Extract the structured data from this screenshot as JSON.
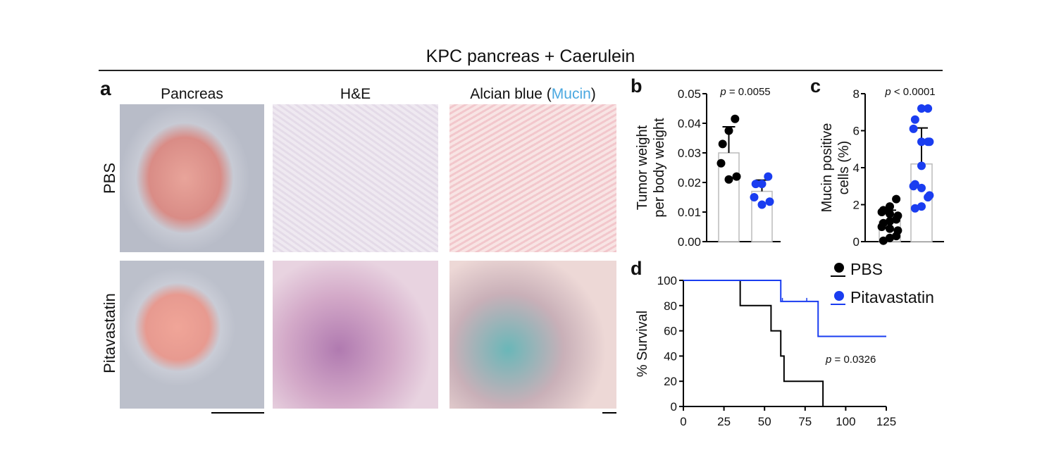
{
  "figure_title": "KPC pancreas + Caerulein",
  "panel_a": {
    "label": "a",
    "columns": [
      "Pancreas",
      "H&E",
      "Alcian blue ("
    ],
    "alcian_mucin": "Mucin",
    "alcian_close": ")",
    "rows": [
      "PBS",
      "Pitavastatin"
    ],
    "mucin_color": "#4aa8e0"
  },
  "colors": {
    "PBS": "#000000",
    "Pitavastatin": "#1a3df0"
  },
  "chart_data": [
    {
      "panel": "b",
      "type": "bar",
      "ylabel": [
        "Tumor weight",
        "per body weight"
      ],
      "ylim": [
        0,
        0.05
      ],
      "yticks": [
        "0.00",
        "0.01",
        "0.02",
        "0.03",
        "0.04",
        "0.05"
      ],
      "annotation": "= 0.0055",
      "p": "p",
      "series": [
        {
          "group": "PBS",
          "mean": 0.03,
          "sd": 0.0088,
          "points": [
            0.0415,
            0.0375,
            0.033,
            0.0265,
            0.021,
            0.022
          ]
        },
        {
          "group": "Pitavastatin",
          "mean": 0.017,
          "sd": 0.0038,
          "points": [
            0.022,
            0.0195,
            0.0195,
            0.015,
            0.0125,
            0.0135
          ]
        }
      ]
    },
    {
      "panel": "c",
      "type": "bar",
      "ylabel": [
        "Mucin positive",
        "cells (%)"
      ],
      "ylim": [
        0,
        8
      ],
      "yticks": [
        "0",
        "2",
        "4",
        "6",
        "8"
      ],
      "annotation": "< 0.0001",
      "p": "p",
      "series": [
        {
          "group": "PBS",
          "mean": 1.1,
          "sd": 0.6,
          "points": [
            2.3,
            1.9,
            1.7,
            1.6,
            1.5,
            1.4,
            1.2,
            1.1,
            1.0,
            0.8,
            0.7,
            0.6,
            0.3,
            0.2,
            0.05
          ]
        },
        {
          "group": "Pitavastatin",
          "mean": 4.2,
          "sd": 1.95,
          "points": [
            7.2,
            7.2,
            6.6,
            6.1,
            5.4,
            5.4,
            5.4,
            4.1,
            3.1,
            3.0,
            2.9,
            2.5,
            2.4,
            1.9,
            1.8
          ]
        }
      ]
    },
    {
      "panel": "d",
      "type": "line",
      "ylabel": "% Survival",
      "xlim": [
        0,
        125
      ],
      "ylim": [
        0,
        100
      ],
      "xticks": [
        "0",
        "25",
        "50",
        "75",
        "100",
        "125"
      ],
      "yticks": [
        "0",
        "20",
        "40",
        "60",
        "80",
        "100"
      ],
      "annotation": "= 0.0326",
      "p": "p",
      "legend": [
        "PBS",
        "Pitavastatin"
      ],
      "legend_position": "top-right",
      "series": [
        {
          "name": "PBS",
          "steps": [
            [
              0,
              100
            ],
            [
              35,
              80
            ],
            [
              54,
              60
            ],
            [
              60,
              40
            ],
            [
              62,
              20
            ],
            [
              86,
              0
            ]
          ],
          "end": 86
        },
        {
          "name": "Pitavastatin",
          "steps": [
            [
              0,
              100
            ],
            [
              60,
              83.3
            ],
            [
              83,
              55.6
            ]
          ],
          "end": 125,
          "censored": [
            [
              61,
              83.3
            ],
            [
              76,
              83.3
            ]
          ]
        }
      ]
    }
  ]
}
